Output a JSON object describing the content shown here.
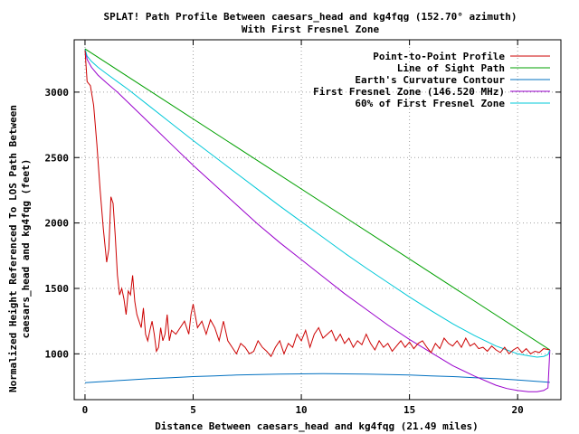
{
  "chart_data": {
    "type": "line",
    "title": "SPLAT! Path Profile Between caesars_head and kg4fqg (152.70° azimuth)",
    "subtitle": "With First Fresnel Zone",
    "xlabel": "Distance Between caesars_head and kg4fqg (21.49 miles)",
    "ylabel_line1": "Normalized Height Referenced To LOS Path Between",
    "ylabel_line2": "caesars_head and kg4fqg (feet)",
    "xlim": [
      -0.5,
      22.0
    ],
    "ylim": [
      650,
      3400
    ],
    "xticks": [
      0,
      5,
      10,
      15,
      20
    ],
    "yticks": [
      1000,
      1500,
      2000,
      2500,
      3000
    ],
    "grid": true,
    "legend_position": "top-right",
    "series": [
      {
        "name": "Point-to-Point Profile",
        "color": "#cc0000",
        "x": [
          0,
          0.1,
          0.25,
          0.4,
          0.55,
          0.7,
          0.85,
          1.0,
          1.1,
          1.2,
          1.3,
          1.4,
          1.5,
          1.6,
          1.7,
          1.8,
          1.9,
          2.0,
          2.1,
          2.2,
          2.3,
          2.4,
          2.5,
          2.6,
          2.7,
          2.8,
          2.9,
          3.0,
          3.1,
          3.2,
          3.3,
          3.4,
          3.5,
          3.6,
          3.7,
          3.8,
          3.9,
          4.0,
          4.2,
          4.4,
          4.6,
          4.8,
          4.9,
          5.0,
          5.2,
          5.4,
          5.6,
          5.8,
          6.0,
          6.2,
          6.4,
          6.6,
          6.8,
          7.0,
          7.2,
          7.4,
          7.6,
          7.8,
          8.0,
          8.2,
          8.4,
          8.6,
          8.8,
          9.0,
          9.2,
          9.4,
          9.6,
          9.8,
          10.0,
          10.2,
          10.4,
          10.6,
          10.8,
          11.0,
          11.2,
          11.4,
          11.6,
          11.8,
          12.0,
          12.2,
          12.4,
          12.6,
          12.8,
          13.0,
          13.2,
          13.4,
          13.6,
          13.8,
          14.0,
          14.2,
          14.4,
          14.6,
          14.8,
          15.0,
          15.2,
          15.4,
          15.6,
          15.8,
          16.0,
          16.2,
          16.4,
          16.6,
          16.8,
          17.0,
          17.2,
          17.4,
          17.6,
          17.8,
          18.0,
          18.2,
          18.4,
          18.6,
          18.8,
          19.0,
          19.2,
          19.4,
          19.6,
          19.8,
          20.0,
          20.2,
          20.4,
          20.6,
          20.8,
          21.0,
          21.2,
          21.49
        ],
        "y": [
          3320,
          3080,
          3050,
          2900,
          2600,
          2250,
          1950,
          1700,
          1800,
          2200,
          2150,
          1900,
          1600,
          1450,
          1500,
          1420,
          1300,
          1480,
          1450,
          1600,
          1400,
          1300,
          1250,
          1200,
          1350,
          1150,
          1100,
          1180,
          1250,
          1150,
          1020,
          1050,
          1200,
          1100,
          1150,
          1300,
          1100,
          1180,
          1150,
          1200,
          1250,
          1150,
          1300,
          1380,
          1200,
          1250,
          1150,
          1260,
          1200,
          1100,
          1250,
          1100,
          1050,
          1000,
          1080,
          1050,
          1000,
          1020,
          1100,
          1050,
          1020,
          980,
          1050,
          1100,
          1000,
          1080,
          1050,
          1150,
          1100,
          1180,
          1050,
          1150,
          1200,
          1120,
          1150,
          1180,
          1100,
          1150,
          1080,
          1120,
          1050,
          1100,
          1070,
          1150,
          1080,
          1030,
          1100,
          1050,
          1080,
          1020,
          1060,
          1100,
          1050,
          1090,
          1040,
          1080,
          1100,
          1050,
          1010,
          1080,
          1040,
          1120,
          1080,
          1060,
          1100,
          1050,
          1120,
          1060,
          1080,
          1040,
          1050,
          1020,
          1060,
          1030,
          1010,
          1050,
          1000,
          1030,
          1050,
          1010,
          1040,
          1000,
          1020,
          1010,
          1040,
          1030
        ]
      },
      {
        "name": "Line of Sight Path",
        "color": "#00a000",
        "x": [
          0,
          21.49
        ],
        "y": [
          3330,
          1030
        ]
      },
      {
        "name": "Earth's Curvature Contour",
        "color": "#0070c0",
        "x": [
          0,
          1,
          2,
          3,
          4,
          5,
          6,
          7,
          8,
          9,
          10,
          11,
          12,
          13,
          14,
          15,
          16,
          17,
          18,
          19,
          20,
          21,
          21.49
        ],
        "y": [
          780,
          790,
          800,
          810,
          818,
          826,
          832,
          838,
          842,
          845,
          847,
          848,
          847,
          845,
          842,
          838,
          832,
          826,
          818,
          810,
          800,
          788,
          782
        ]
      },
      {
        "name": "First Fresnel Zone (146.520 MHz)",
        "color": "#9900cc",
        "x": [
          0,
          0.1,
          0.3,
          0.6,
          1,
          1.5,
          2,
          3,
          4,
          5,
          6,
          7,
          8,
          9,
          10,
          11,
          12,
          13,
          14,
          15,
          16,
          17,
          18,
          19,
          19.5,
          20,
          20.5,
          20.9,
          21.2,
          21.4,
          21.49
        ],
        "y": [
          3330,
          3250,
          3190,
          3130,
          3070,
          3000,
          2920,
          2760,
          2600,
          2440,
          2290,
          2140,
          1990,
          1850,
          1720,
          1590,
          1460,
          1340,
          1220,
          1110,
          1010,
          910,
          830,
          760,
          735,
          720,
          710,
          710,
          720,
          740,
          1030
        ]
      },
      {
        "name": "60% of First Fresnel Zone",
        "color": "#00c8d8",
        "x": [
          0,
          0.1,
          0.3,
          0.6,
          1,
          1.5,
          2,
          3,
          4,
          5,
          6,
          7,
          8,
          9,
          10,
          11,
          12,
          13,
          14,
          15,
          16,
          17,
          18,
          19,
          19.5,
          20,
          20.5,
          20.9,
          21.2,
          21.4,
          21.49
        ],
        "y": [
          3330,
          3275,
          3235,
          3190,
          3140,
          3080,
          3020,
          2890,
          2760,
          2630,
          2505,
          2380,
          2255,
          2130,
          2010,
          1890,
          1770,
          1655,
          1545,
          1435,
          1330,
          1230,
          1140,
          1060,
          1030,
          1000,
          985,
          975,
          980,
          995,
          1030
        ]
      }
    ]
  }
}
